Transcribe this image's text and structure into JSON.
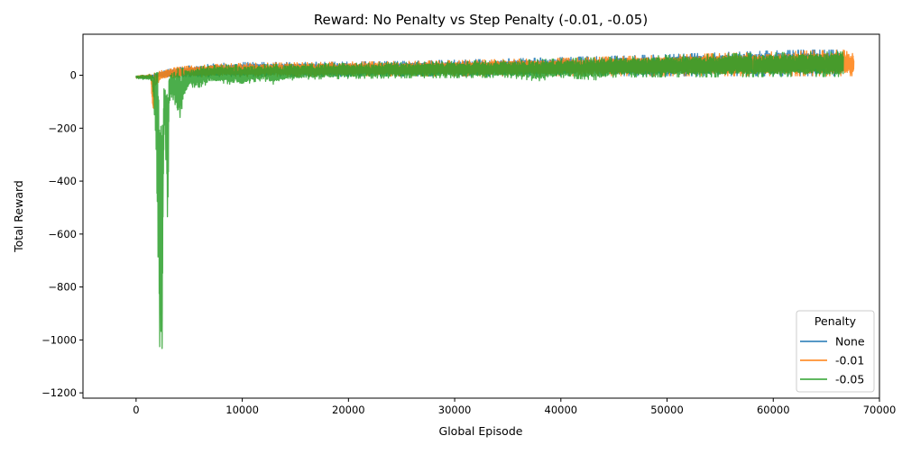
{
  "chart_data": {
    "type": "line",
    "title": "Reward: No Penalty vs Step Penalty (-0.01, -0.05)",
    "xlabel": "Global Episode",
    "ylabel": "Total Reward",
    "xlim": [
      -5000,
      70000
    ],
    "ylim": [
      -1220,
      155
    ],
    "x_ticks": [
      0,
      10000,
      20000,
      30000,
      40000,
      50000,
      60000,
      70000
    ],
    "x_tick_labels": [
      "0",
      "10000",
      "20000",
      "30000",
      "40000",
      "50000",
      "60000",
      "70000"
    ],
    "y_ticks": [
      -1200,
      -1000,
      -800,
      -600,
      -400,
      -200,
      0
    ],
    "y_tick_labels": [
      "−1200",
      "−1000",
      "−800",
      "−600",
      "−400",
      "−200",
      "0"
    ],
    "grid": false,
    "legend_title": "Penalty",
    "legend_position": "lower-right",
    "series": [
      {
        "name": "None",
        "color": "#1f77b4",
        "upper": [
          [
            0,
            -3
          ],
          [
            1500,
            2
          ],
          [
            2000,
            8
          ],
          [
            3000,
            22
          ],
          [
            5000,
            35
          ],
          [
            8000,
            45
          ],
          [
            10000,
            48
          ],
          [
            15000,
            48
          ],
          [
            20000,
            50
          ],
          [
            25000,
            52
          ],
          [
            30000,
            57
          ],
          [
            35000,
            62
          ],
          [
            40000,
            67
          ],
          [
            45000,
            72
          ],
          [
            50000,
            78
          ],
          [
            55000,
            85
          ],
          [
            60000,
            92
          ],
          [
            63000,
            95
          ],
          [
            66600,
            95
          ]
        ],
        "lower": [
          [
            0,
            -12
          ],
          [
            1500,
            -10
          ],
          [
            2000,
            -9
          ],
          [
            3000,
            -7
          ],
          [
            5000,
            -5
          ],
          [
            8000,
            -5
          ],
          [
            10000,
            -5
          ],
          [
            15000,
            -4
          ],
          [
            20000,
            -4
          ],
          [
            25000,
            -3
          ],
          [
            30000,
            -3
          ],
          [
            35000,
            -3
          ],
          [
            40000,
            -2
          ],
          [
            45000,
            -2
          ],
          [
            50000,
            -2
          ],
          [
            55000,
            -2
          ],
          [
            60000,
            -2
          ],
          [
            63000,
            -2
          ],
          [
            66600,
            -2
          ]
        ]
      },
      {
        "name": "-0.01",
        "color": "#ff7f0e",
        "upper": [
          [
            0,
            -3
          ],
          [
            1500,
            5
          ],
          [
            2000,
            12
          ],
          [
            3000,
            25
          ],
          [
            5000,
            35
          ],
          [
            8000,
            42
          ],
          [
            10000,
            45
          ],
          [
            15000,
            47
          ],
          [
            20000,
            50
          ],
          [
            25000,
            52
          ],
          [
            30000,
            55
          ],
          [
            35000,
            60
          ],
          [
            40000,
            64
          ],
          [
            45000,
            70
          ],
          [
            50000,
            76
          ],
          [
            55000,
            82
          ],
          [
            60000,
            88
          ],
          [
            63000,
            92
          ],
          [
            66600,
            95
          ],
          [
            67600,
            80
          ]
        ],
        "lower": [
          [
            0,
            -12
          ],
          [
            1400,
            -10
          ],
          [
            1500,
            -100
          ],
          [
            1550,
            -160
          ],
          [
            1650,
            -170
          ],
          [
            1750,
            -40
          ],
          [
            2000,
            -30
          ],
          [
            2500,
            -15
          ],
          [
            3000,
            -10
          ],
          [
            5000,
            -6
          ],
          [
            8000,
            -5
          ],
          [
            10000,
            -5
          ],
          [
            15000,
            -4
          ],
          [
            20000,
            -3
          ],
          [
            25000,
            -3
          ],
          [
            30000,
            -3
          ],
          [
            35000,
            -2
          ],
          [
            40000,
            -2
          ],
          [
            45000,
            -2
          ],
          [
            50000,
            -2
          ],
          [
            55000,
            -2
          ],
          [
            60000,
            -2
          ],
          [
            63000,
            -2
          ],
          [
            66600,
            -2
          ],
          [
            67600,
            -2
          ]
        ]
      },
      {
        "name": "-0.05",
        "color": "#2ca02c",
        "upper": [
          [
            0,
            -3
          ],
          [
            1500,
            3
          ],
          [
            2000,
            10
          ],
          [
            3000,
            20
          ],
          [
            5000,
            30
          ],
          [
            8000,
            38
          ],
          [
            10000,
            40
          ],
          [
            15000,
            42
          ],
          [
            20000,
            45
          ],
          [
            25000,
            48
          ],
          [
            30000,
            52
          ],
          [
            35000,
            56
          ],
          [
            40000,
            62
          ],
          [
            45000,
            68
          ],
          [
            50000,
            75
          ],
          [
            55000,
            80
          ],
          [
            60000,
            85
          ],
          [
            63000,
            88
          ],
          [
            66600,
            88
          ]
        ],
        "lower": [
          [
            0,
            -12
          ],
          [
            1500,
            -20
          ],
          [
            1700,
            -120
          ],
          [
            1900,
            -330
          ],
          [
            2000,
            -700
          ],
          [
            2100,
            -920
          ],
          [
            2200,
            -1000
          ],
          [
            2300,
            -1080
          ],
          [
            2400,
            -1155
          ],
          [
            2500,
            -900
          ],
          [
            2600,
            -400
          ],
          [
            2700,
            -200
          ],
          [
            2900,
            -420
          ],
          [
            3000,
            -640
          ],
          [
            3100,
            -130
          ],
          [
            3300,
            -80
          ],
          [
            3600,
            -100
          ],
          [
            3800,
            -130
          ],
          [
            4000,
            -180
          ],
          [
            4200,
            -150
          ],
          [
            4500,
            -90
          ],
          [
            5000,
            -45
          ],
          [
            6000,
            -45
          ],
          [
            7000,
            -30
          ],
          [
            8000,
            -28
          ],
          [
            9000,
            -35
          ],
          [
            10000,
            -40
          ],
          [
            11000,
            -25
          ],
          [
            12000,
            -20
          ],
          [
            13000,
            -35
          ],
          [
            14000,
            -20
          ],
          [
            16000,
            -15
          ],
          [
            20000,
            -12
          ],
          [
            25000,
            -10
          ],
          [
            30000,
            -9
          ],
          [
            35000,
            -8
          ],
          [
            37800,
            -22
          ],
          [
            40000,
            -8
          ],
          [
            43500,
            -18
          ],
          [
            45000,
            -7
          ],
          [
            50000,
            -6
          ],
          [
            55000,
            -6
          ],
          [
            60000,
            -5
          ],
          [
            63000,
            -5
          ],
          [
            66600,
            -5
          ]
        ]
      }
    ]
  }
}
